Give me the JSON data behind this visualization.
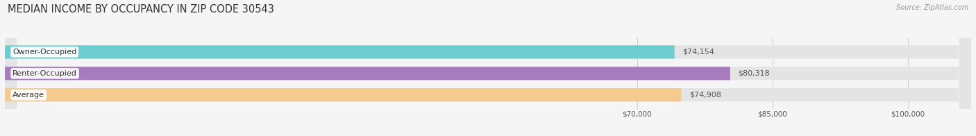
{
  "title": "MEDIAN INCOME BY OCCUPANCY IN ZIP CODE 30543",
  "source": "Source: ZipAtlas.com",
  "categories": [
    "Owner-Occupied",
    "Renter-Occupied",
    "Average"
  ],
  "values": [
    74154,
    80318,
    74908
  ],
  "bar_colors": [
    "#6dcdd0",
    "#a87bbf",
    "#f5ca8e"
  ],
  "bar_bg_color": "#e4e4e4",
  "value_labels": [
    "$74,154",
    "$80,318",
    "$74,908"
  ],
  "xmin": 0,
  "xmax": 107000,
  "xticks": [
    70000,
    85000,
    100000
  ],
  "xtick_labels": [
    "$70,000",
    "$85,000",
    "$100,000"
  ],
  "title_fontsize": 10.5,
  "label_fontsize": 8,
  "tick_fontsize": 7.5,
  "source_fontsize": 7,
  "bar_height": 0.62,
  "background_color": "#f5f5f5",
  "grid_color": "#cccccc",
  "text_color": "#555555",
  "label_bg_color": "white"
}
